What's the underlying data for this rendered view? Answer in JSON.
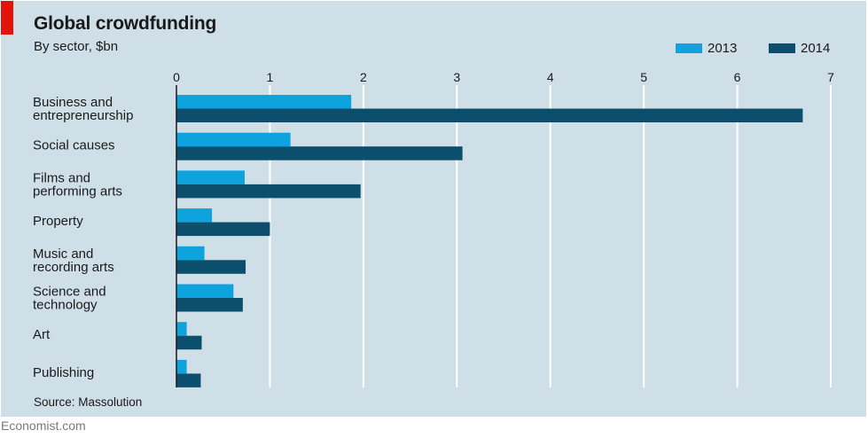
{
  "header": {
    "title": "Global crowdfunding",
    "subtitle": "By sector, $bn"
  },
  "footer": {
    "source": "Source: Massolution",
    "brand": "Economist.com"
  },
  "colors": {
    "background": "#cfdfe7",
    "series_2013": "#0ea3dc",
    "series_2014": "#0b4f6c",
    "accent": "#e3120b",
    "gridline": "#ffffff"
  },
  "chart_data": {
    "type": "bar",
    "orientation": "horizontal",
    "title": "Global crowdfunding",
    "subtitle": "By sector, $bn",
    "xlim": [
      0,
      7
    ],
    "xticks": [
      0,
      1,
      2,
      3,
      4,
      5,
      6,
      7
    ],
    "grid": true,
    "legend_position": "top-right",
    "categories": [
      [
        "Business and",
        "entrepreneurship"
      ],
      [
        "Social causes"
      ],
      [
        "Films and",
        "performing arts"
      ],
      [
        "Property"
      ],
      [
        "Music and",
        "recording arts"
      ],
      [
        "Science and",
        "technology"
      ],
      [
        "Art"
      ],
      [
        "Publishing"
      ]
    ],
    "series": [
      {
        "name": "2013",
        "color": "#0ea3dc",
        "values": [
          1.87,
          1.22,
          0.73,
          0.38,
          0.3,
          0.61,
          0.11,
          0.11
        ]
      },
      {
        "name": "2014",
        "color": "#0b4f6c",
        "values": [
          6.7,
          3.06,
          1.97,
          1.0,
          0.74,
          0.71,
          0.27,
          0.26
        ]
      }
    ]
  }
}
